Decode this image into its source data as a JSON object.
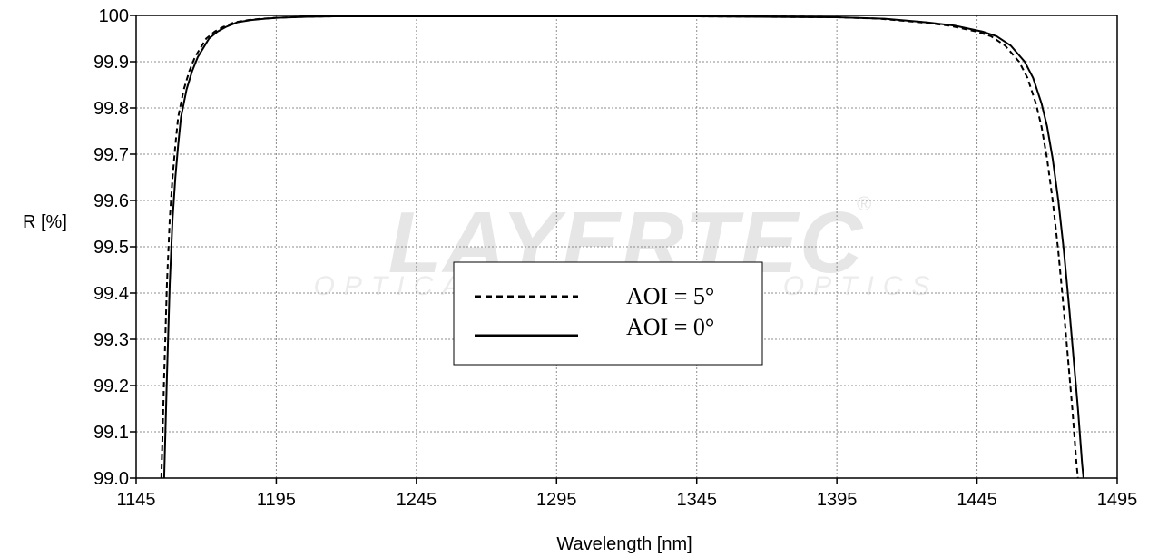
{
  "chart_data": {
    "type": "line",
    "title": "",
    "xlabel": "Wavelength [nm]",
    "ylabel": "R [%]",
    "xlim": [
      1145,
      1495
    ],
    "ylim": [
      99.0,
      100
    ],
    "x_ticks": [
      "1145",
      "1195",
      "1245",
      "1295",
      "1345",
      "1395",
      "1445",
      "1495"
    ],
    "y_ticks": [
      "99.0",
      "99.1",
      "99.2",
      "99.3",
      "99.4",
      "99.5",
      "99.6",
      "99.7",
      "99.8",
      "99.9",
      "100"
    ],
    "grid": true,
    "legend_position": "center",
    "watermark": {
      "brand": "LAYERTEC",
      "tagline": "OPTICAL COATINGS & OPTICS",
      "mark": "®"
    },
    "series": [
      {
        "name": "AOI = 5°",
        "style": "dashed",
        "color": "#000000",
        "x": [
          1154.0,
          1155.0,
          1156.0,
          1157.0,
          1158.0,
          1159.0,
          1160.0,
          1162.0,
          1164.0,
          1166.0,
          1168.0,
          1170.0,
          1173.0,
          1176.0,
          1180.0,
          1185.0,
          1190.0,
          1195.0,
          1205.0,
          1215.0,
          1245.0,
          1295.0,
          1345.0,
          1395.0,
          1410.0,
          1425.0,
          1435.0,
          1445.0,
          1450.0,
          1455.0,
          1460.0,
          1463.0,
          1466.0,
          1468.0,
          1470.0,
          1472.0,
          1474.0,
          1476.0,
          1477.0,
          1478.0,
          1479.0,
          1480.0,
          1480.5,
          1481.0
        ],
        "y": [
          99.0,
          99.22,
          99.42,
          99.56,
          99.65,
          99.72,
          99.78,
          99.84,
          99.88,
          99.91,
          99.93,
          99.95,
          99.965,
          99.975,
          99.985,
          99.99,
          99.993,
          99.995,
          99.997,
          99.998,
          99.998,
          99.998,
          99.998,
          99.996,
          99.993,
          99.985,
          99.978,
          99.965,
          99.955,
          99.935,
          99.9,
          99.865,
          99.81,
          99.76,
          99.69,
          99.6,
          99.49,
          99.36,
          99.29,
          99.22,
          99.15,
          99.07,
          99.03,
          99.0
        ]
      },
      {
        "name": "AOI = 0°",
        "style": "solid",
        "color": "#000000",
        "x": [
          1155.0,
          1156.0,
          1157.0,
          1158.0,
          1159.0,
          1160.0,
          1161.0,
          1163.0,
          1165.0,
          1167.0,
          1169.0,
          1171.0,
          1174.0,
          1177.0,
          1181.0,
          1186.0,
          1191.0,
          1196.0,
          1206.0,
          1216.0,
          1245.0,
          1295.0,
          1345.0,
          1395.0,
          1412.0,
          1427.0,
          1437.0,
          1447.0,
          1452.0,
          1457.0,
          1462.0,
          1465.0,
          1468.0,
          1470.0,
          1472.0,
          1474.0,
          1476.0,
          1478.0,
          1479.0,
          1480.0,
          1481.0,
          1482.0,
          1482.5,
          1483.0
        ],
        "y": [
          99.0,
          99.22,
          99.42,
          99.56,
          99.65,
          99.72,
          99.78,
          99.84,
          99.88,
          99.91,
          99.93,
          99.95,
          99.965,
          99.975,
          99.985,
          99.99,
          99.993,
          99.995,
          99.997,
          99.998,
          99.998,
          99.998,
          99.998,
          99.996,
          99.993,
          99.985,
          99.978,
          99.965,
          99.955,
          99.935,
          99.9,
          99.865,
          99.81,
          99.76,
          99.69,
          99.6,
          99.49,
          99.36,
          99.29,
          99.22,
          99.15,
          99.07,
          99.03,
          99.0
        ]
      }
    ]
  }
}
